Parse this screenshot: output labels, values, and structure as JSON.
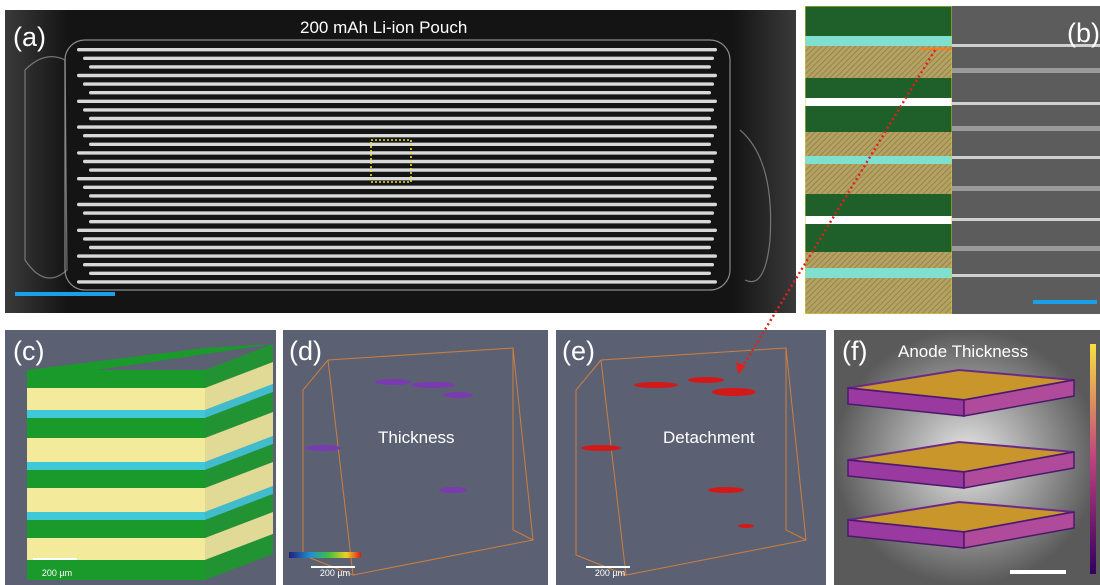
{
  "panels": {
    "a": {
      "label": "(a)",
      "title": "200 mAh Li-ion Pouch"
    },
    "b": {
      "label": "(b)"
    },
    "c": {
      "label": "(c)",
      "scale": "200 µm"
    },
    "d": {
      "label": "(d)",
      "title": "Thickness",
      "scale": "200 µm"
    },
    "e": {
      "label": "(e)",
      "title": "Detachment",
      "scale": "200 µm"
    },
    "f": {
      "label": "(f)",
      "title": "Anode Thickness"
    }
  },
  "colors": {
    "scale_bar": "#1aa0e8",
    "roi_box": "#f0e030",
    "connector": "#e02020",
    "anode_green": "#1a9a2a",
    "cathode_yellow": "#f4ea9c",
    "separator_cyan": "#3ec8d8",
    "thickness_purple": "#7a3ab0",
    "detachment_red": "#d41818",
    "panel_gray": "#5b6172"
  }
}
